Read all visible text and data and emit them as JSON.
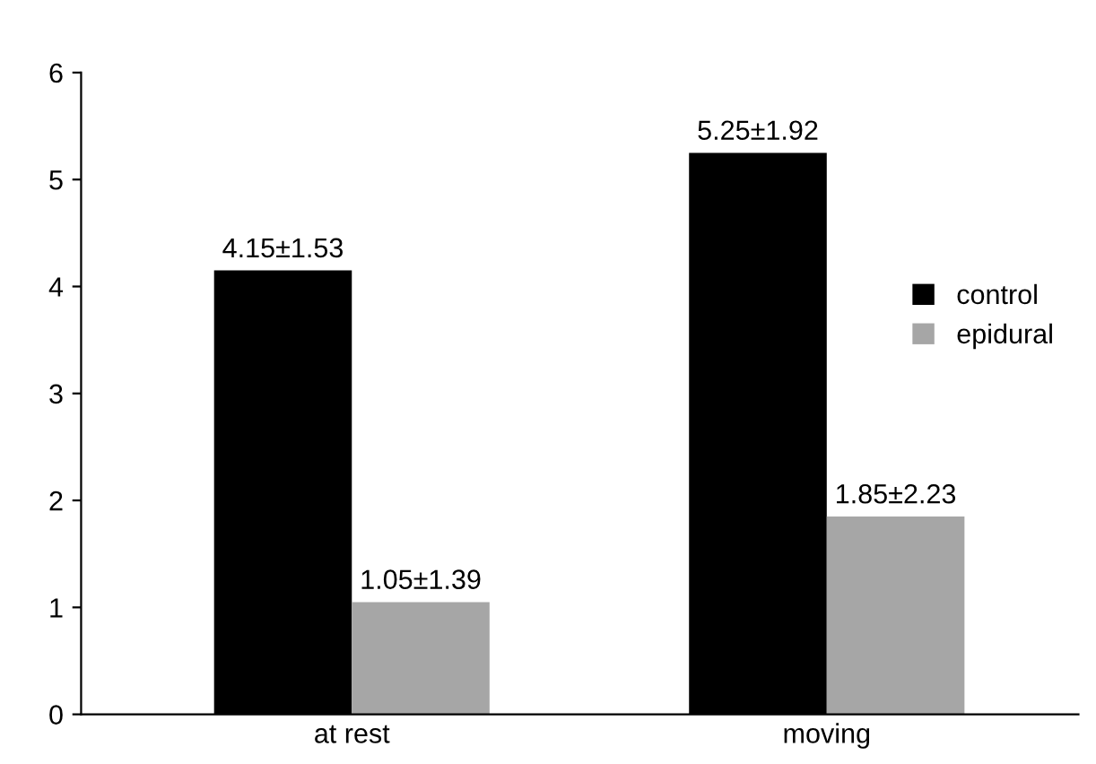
{
  "chart_data": {
    "type": "bar",
    "categories": [
      "at rest",
      "moving"
    ],
    "series": [
      {
        "name": "control",
        "color": "#000000",
        "values": [
          4.15,
          5.25
        ],
        "value_labels": [
          "4.15±1.53",
          "5.25±1.92"
        ]
      },
      {
        "name": "epidural",
        "color": "#a6a6a6",
        "values": [
          1.05,
          1.85
        ],
        "value_labels": [
          "1.05±1.39",
          "1.85±2.23"
        ]
      }
    ],
    "ylim": [
      0,
      6
    ],
    "yticks": [
      0,
      1,
      2,
      3,
      4,
      5,
      6
    ],
    "grid": false,
    "legend": "right"
  }
}
